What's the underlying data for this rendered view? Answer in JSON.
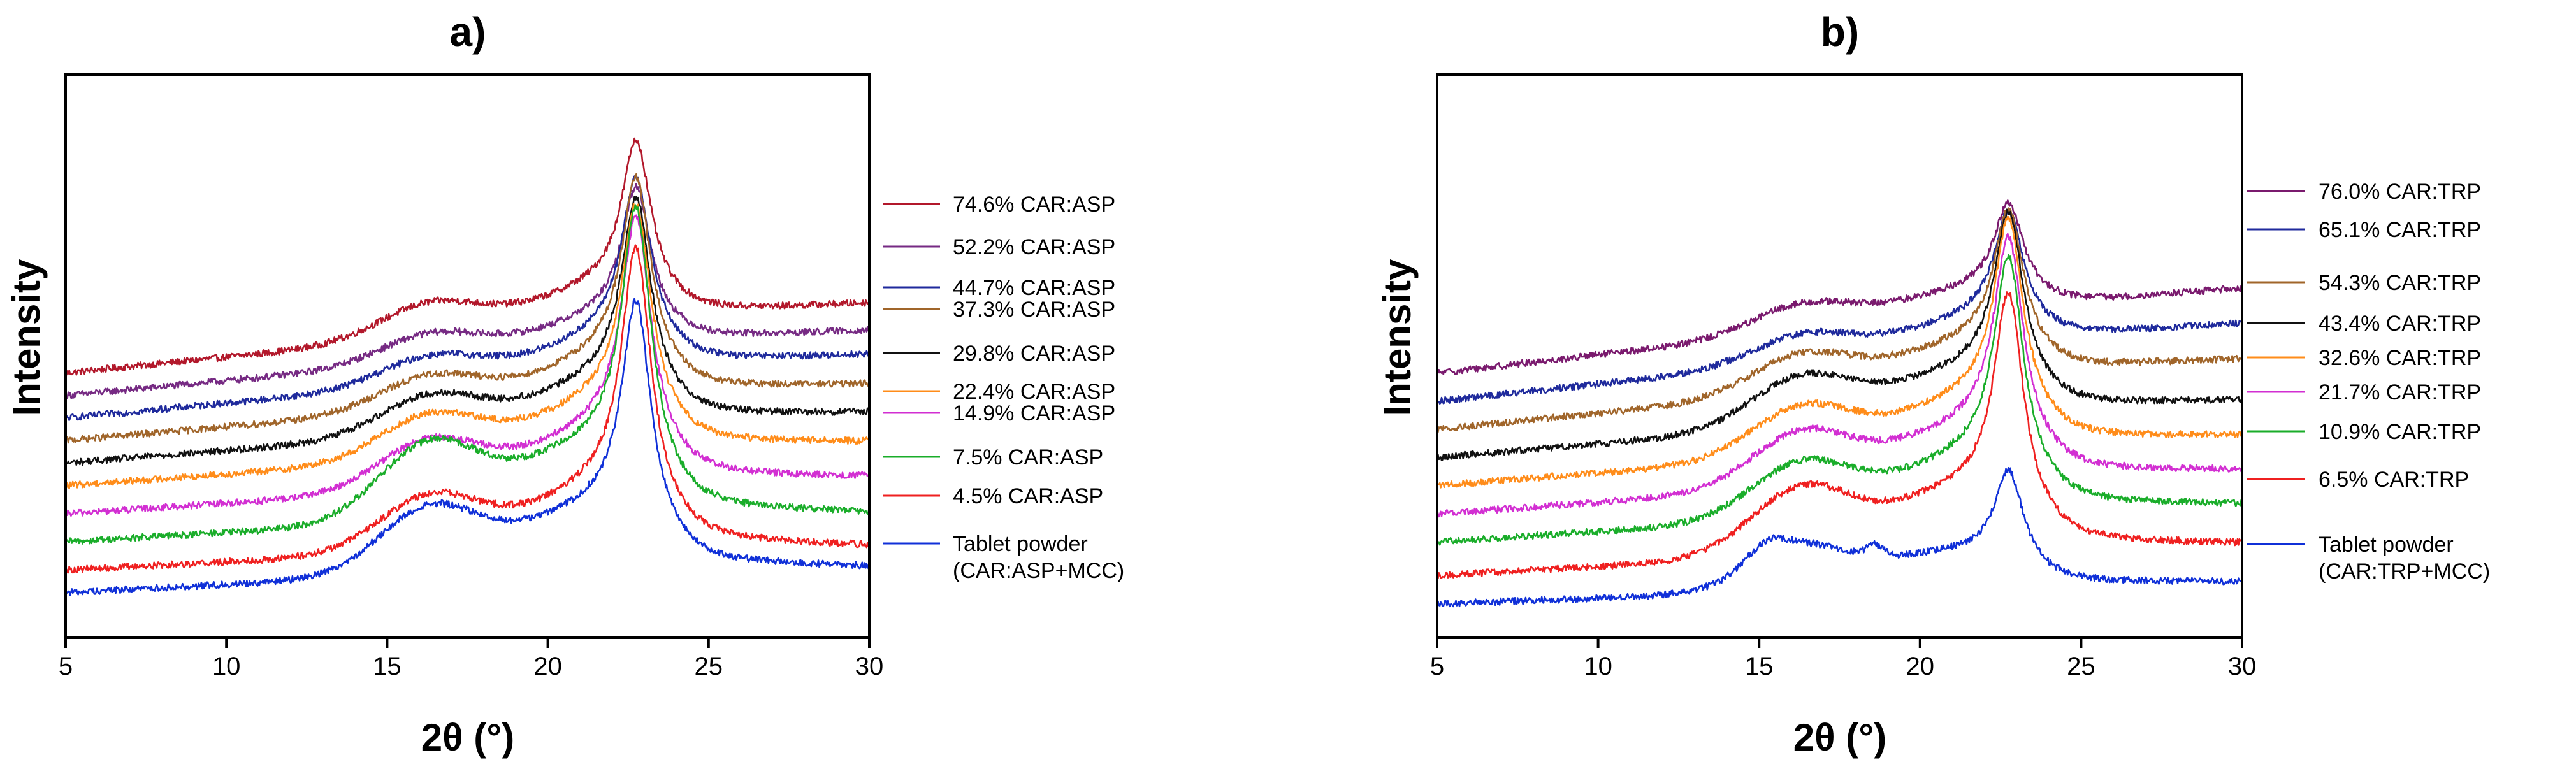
{
  "chart_data": [
    {
      "panel": "a",
      "type": "line",
      "title": "a)",
      "xlabel": "2θ (°)",
      "ylabel": "Intensity",
      "xlim": [
        5,
        30
      ],
      "xticks": [
        5,
        10,
        15,
        20,
        25,
        30
      ],
      "grid": false,
      "legend_position": "right",
      "series": [
        {
          "name": "74.6% CAR:ASP",
          "color": "#b2182b",
          "offset": 0.82,
          "main_peak": 0.27,
          "hump": 0.06,
          "slope": 0.14
        },
        {
          "name": "52.2% CAR:ASP",
          "color": "#762a83",
          "offset": 0.78,
          "main_peak": 0.24,
          "hump": 0.05,
          "slope": 0.13
        },
        {
          "name": "44.7% CAR:ASP",
          "color": "#1f2a9c",
          "offset": 0.74,
          "main_peak": 0.29,
          "hump": 0.05,
          "slope": 0.13
        },
        {
          "name": "37.3% CAR:ASP",
          "color": "#a0652a",
          "offset": 0.7,
          "main_peak": 0.33,
          "hump": 0.06,
          "slope": 0.12
        },
        {
          "name": "29.8% CAR:ASP",
          "color": "#111111",
          "offset": 0.66,
          "main_peak": 0.34,
          "hump": 0.07,
          "slope": 0.11
        },
        {
          "name": "22.4% CAR:ASP",
          "color": "#ff8c1a",
          "offset": 0.62,
          "main_peak": 0.37,
          "hump": 0.08,
          "slope": 0.1
        },
        {
          "name": "14.9% CAR:ASP",
          "color": "#d22fd2",
          "offset": 0.57,
          "main_peak": 0.4,
          "hump": 0.09,
          "slope": 0.09
        },
        {
          "name": "7.5% CAR:ASP",
          "color": "#1aad2a",
          "offset": 0.52,
          "main_peak": 0.46,
          "hump": 0.14,
          "slope": 0.08
        },
        {
          "name": "4.5% CAR:ASP",
          "color": "#ef2020",
          "offset": 0.47,
          "main_peak": 0.45,
          "hump": 0.1,
          "slope": 0.07
        },
        {
          "name": "Tablet powder\n(CAR:ASP+MCC)",
          "color": "#1030d8",
          "offset": 0.43,
          "main_peak": 0.4,
          "hump": 0.12,
          "slope": 0.07
        }
      ],
      "legend_lines": [
        [
          "74.6% CAR:ASP"
        ],
        [
          "52.2% CAR:ASP"
        ],
        [
          "44.7% CAR:ASP"
        ],
        [
          "37.3% CAR:ASP"
        ],
        [
          "29.8% CAR:ASP"
        ],
        [
          "22.4% CAR:ASP"
        ],
        [
          "14.9% CAR:ASP"
        ],
        [
          "7.5% CAR:ASP"
        ],
        [
          "4.5% CAR:ASP"
        ],
        [
          "Tablet powder",
          "(CAR:ASP+MCC)"
        ]
      ]
    },
    {
      "panel": "b",
      "type": "line",
      "title": "b)",
      "xlabel": "2θ (°)",
      "ylabel": "Intensity",
      "xlim": [
        5,
        30
      ],
      "xticks": [
        5,
        10,
        15,
        20,
        25,
        30
      ],
      "grid": false,
      "legend_position": "right",
      "series": [
        {
          "name": "76.0% CAR:TRP",
          "color": "#7a1a6e",
          "offset": 0.82,
          "main_peak": 0.16,
          "hump": 0.05,
          "slope": 0.16
        },
        {
          "name": "65.1% CAR:TRP",
          "color": "#1f2a9c",
          "offset": 0.77,
          "main_peak": 0.2,
          "hump": 0.05,
          "slope": 0.15
        },
        {
          "name": "54.3% CAR:TRP",
          "color": "#a0652a",
          "offset": 0.72,
          "main_peak": 0.25,
          "hump": 0.07,
          "slope": 0.14
        },
        {
          "name": "43.4% CAR:TRP",
          "color": "#111111",
          "offset": 0.67,
          "main_peak": 0.3,
          "hump": 0.09,
          "slope": 0.12
        },
        {
          "name": "32.6% CAR:TRP",
          "color": "#ff8c1a",
          "offset": 0.62,
          "main_peak": 0.34,
          "hump": 0.09,
          "slope": 0.11
        },
        {
          "name": "21.7% CAR:TRP",
          "color": "#d22fd2",
          "offset": 0.57,
          "main_peak": 0.36,
          "hump": 0.1,
          "slope": 0.1
        },
        {
          "name": "10.9% CAR:TRP",
          "color": "#1aad2a",
          "offset": 0.52,
          "main_peak": 0.38,
          "hump": 0.1,
          "slope": 0.09
        },
        {
          "name": "6.5% CAR:TRP",
          "color": "#ef2020",
          "offset": 0.46,
          "main_peak": 0.38,
          "hump": 0.12,
          "slope": 0.08
        },
        {
          "name": "Tablet powder\n(CAR:TRP+MCC)",
          "color": "#1030d8",
          "offset": 0.41,
          "main_peak": 0.17,
          "hump": 0.08,
          "slope": 0.05
        }
      ],
      "legend_lines": [
        [
          "76.0% CAR:TRP"
        ],
        [
          "65.1% CAR:TRP"
        ],
        [
          "54.3% CAR:TRP"
        ],
        [
          "43.4% CAR:TRP"
        ],
        [
          "32.6% CAR:TRP"
        ],
        [
          "21.7% CAR:TRP"
        ],
        [
          "10.9% CAR:TRP"
        ],
        [
          "6.5% CAR:TRP"
        ],
        [
          "Tablet powder",
          "(CAR:TRP+MCC)"
        ]
      ]
    }
  ]
}
